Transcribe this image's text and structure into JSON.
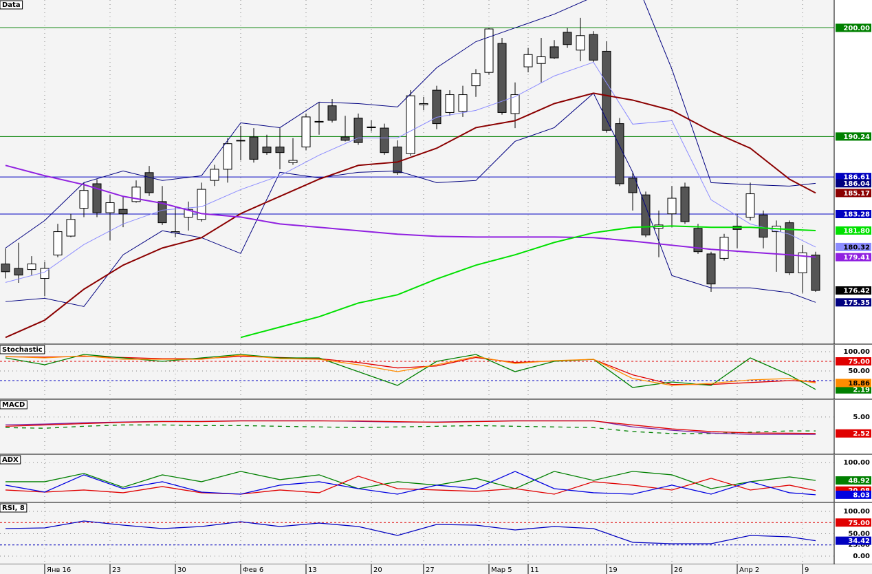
{
  "chart_data": [
    {
      "type": "candlestick",
      "title": "Data",
      "ylim": [
        171.6,
        202.5
      ],
      "open": [
        178.8,
        178.4,
        178.3,
        177.5,
        179.6,
        181.3,
        183.8,
        186.0,
        183.4,
        183.7,
        184.4,
        187.0,
        184.4,
        181.6,
        183.0,
        182.8,
        186.3,
        187.3,
        189.9,
        190.2,
        189.3,
        189.3,
        187.9,
        189.3,
        191.6,
        193.0,
        190.2,
        191.9,
        191.1,
        191.0,
        189.3,
        188.7,
        193.1,
        194.4,
        192.4,
        192.5,
        194.8,
        196.0,
        198.6,
        192.3,
        196.5,
        196.8,
        198.3,
        199.6,
        198.0,
        199.4,
        197.9,
        191.4,
        186.5,
        185.0,
        182.0,
        183.3,
        185.7,
        182.0,
        179.7,
        179.3,
        182.2,
        183.0,
        183.2,
        181.7,
        182.5,
        178.0,
        179.6
      ],
      "high": [
        180.2,
        180.7,
        179.5,
        179.0,
        182.4,
        183.3,
        186.1,
        186.4,
        185.0,
        184.9,
        186.3,
        187.6,
        185.8,
        183.9,
        184.4,
        186.1,
        187.7,
        190.1,
        191.2,
        191.0,
        190.4,
        191.0,
        190.1,
        192.3,
        193.3,
        193.6,
        192.1,
        192.3,
        191.7,
        191.4,
        189.9,
        194.4,
        193.8,
        194.8,
        194.4,
        194.8,
        196.3,
        200.0,
        199.1,
        195.1,
        198.2,
        199.1,
        198.9,
        200.0,
        200.9,
        199.7,
        198.8,
        191.9,
        187.0,
        185.3,
        183.6,
        185.8,
        186.1,
        182.4,
        179.9,
        181.5,
        183.3,
        186.1,
        183.6,
        182.7,
        182.7,
        180.5,
        179.9
      ],
      "low": [
        177.5,
        177.1,
        177.8,
        175.9,
        179.4,
        181.2,
        183.0,
        183.0,
        180.9,
        182.1,
        184.3,
        184.9,
        182.3,
        181.2,
        181.8,
        182.6,
        185.8,
        186.1,
        188.1,
        187.9,
        188.6,
        187.3,
        187.7,
        189.0,
        190.4,
        191.5,
        189.8,
        189.5,
        190.7,
        188.6,
        186.8,
        188.5,
        192.6,
        190.9,
        192.1,
        192.0,
        193.8,
        195.8,
        192.2,
        191.0,
        196.0,
        195.1,
        197.2,
        198.2,
        197.0,
        196.9,
        190.6,
        185.8,
        183.6,
        181.2,
        179.4,
        182.1,
        182.4,
        179.7,
        176.3,
        179.1,
        180.2,
        182.7,
        180.2,
        178.1,
        177.8,
        176.2,
        176.3
      ],
      "close": [
        178.1,
        177.8,
        178.8,
        178.4,
        181.7,
        182.8,
        185.4,
        183.4,
        184.3,
        183.3,
        185.7,
        185.2,
        182.5,
        181.7,
        183.7,
        185.5,
        187.3,
        189.6,
        189.9,
        188.2,
        188.8,
        188.8,
        188.1,
        192.0,
        191.6,
        191.7,
        189.9,
        189.7,
        191.1,
        188.8,
        187.0,
        193.9,
        193.2,
        191.4,
        194.0,
        194.0,
        195.9,
        199.9,
        192.4,
        194.0,
        197.6,
        197.4,
        197.3,
        198.5,
        199.3,
        197.1,
        190.8,
        186.0,
        185.2,
        181.4,
        182.3,
        184.7,
        182.6,
        179.9,
        177.0,
        181.2,
        181.9,
        185.1,
        181.2,
        182.2,
        178.0,
        179.8,
        176.42
      ],
      "close_label": "176.42",
      "overlay_x": [
        0,
        3,
        6,
        9,
        12,
        15,
        18,
        21,
        24,
        27,
        30,
        33,
        36,
        39,
        42,
        45,
        48,
        51,
        54,
        57,
        60,
        62
      ],
      "overlays": [
        {
          "color": "#000080",
          "values": [
            180.23,
            182.7,
            186.1,
            187.15,
            186.29,
            186.72,
            191.47,
            191.04,
            193.33,
            193.2,
            192.9,
            196.42,
            198.76,
            200.0,
            201.23,
            202.78,
            204.94,
            196.29,
            186.1,
            185.92,
            185.79,
            186.04
          ],
          "last_label": "186.04"
        },
        {
          "color": "#000080",
          "values": [
            175.42,
            175.72,
            174.98,
            179.62,
            181.78,
            181.16,
            179.74,
            187.03,
            186.53,
            187.03,
            187.15,
            186.1,
            186.29,
            189.81,
            191.04,
            194.13,
            187.03,
            177.76,
            176.65,
            176.65,
            176.22,
            175.35
          ],
          "last_label": "175.35"
        },
        {
          "color": "#8c8cff",
          "values": [
            177.14,
            178.07,
            180.54,
            182.39,
            183.63,
            183.94,
            185.48,
            186.72,
            188.57,
            190.12,
            190.12,
            191.97,
            192.59,
            193.82,
            195.68,
            196.91,
            191.35,
            191.66,
            184.56,
            182.39,
            181.47,
            180.32
          ],
          "last_label": "180.32"
        },
        {
          "color": "#8b0000",
          "values": [
            172.2,
            173.75,
            176.53,
            178.69,
            180.23,
            181.16,
            183.32,
            184.87,
            186.41,
            187.65,
            187.95,
            189.19,
            191.04,
            191.66,
            193.2,
            194.13,
            193.51,
            192.59,
            190.73,
            189.19,
            186.41,
            185.17
          ],
          "last_label": "185.17"
        },
        {
          "color": "#9020e0",
          "values": [
            187.65,
            186.72,
            185.92,
            184.87,
            184.25,
            183.32,
            183.01,
            182.39,
            182.09,
            181.78,
            181.47,
            181.28,
            181.22,
            181.22,
            181.22,
            181.16,
            180.85,
            180.48,
            180.11,
            179.86,
            179.62,
            179.41
          ],
          "last_label": "179.41"
        },
        {
          "color": "#00e000",
          "values": [
            null,
            null,
            null,
            null,
            null,
            null,
            172.2,
            173.13,
            174.06,
            175.29,
            176.03,
            177.45,
            178.69,
            179.62,
            180.73,
            181.6,
            182.09,
            182.21,
            182.09,
            182.09,
            181.9,
            181.8
          ],
          "last_label": "181.80"
        }
      ],
      "hlines": [
        {
          "value": 200,
          "label": "200.00",
          "color": "#008000"
        },
        {
          "value": 190.24,
          "label": "190.24",
          "color": "#008000"
        },
        {
          "value": 186.61,
          "label": "186.61",
          "color": "#0000c0"
        },
        {
          "value": 183.28,
          "label": "183.28",
          "color": "#0000c0"
        }
      ],
      "x_labels": [
        {
          "index": 3,
          "label": "Янв 16"
        },
        {
          "index": 8,
          "label": "23"
        },
        {
          "index": 13,
          "label": "30"
        },
        {
          "index": 18,
          "label": "Фев 6"
        },
        {
          "index": 23,
          "label": "13"
        },
        {
          "index": 28,
          "label": "20"
        },
        {
          "index": 32,
          "label": "27"
        },
        {
          "index": 37,
          "label": "Мар 5"
        },
        {
          "index": 40,
          "label": "11"
        },
        {
          "index": 46,
          "label": "19"
        },
        {
          "index": 51,
          "label": "26"
        },
        {
          "index": 56,
          "label": "Апр 2"
        },
        {
          "index": 61,
          "label": "9"
        }
      ]
    },
    {
      "type": "line",
      "title": "Stochastic",
      "ylim": [
        -23.2,
        117.9
      ],
      "yticks": [
        {
          "value": 100,
          "label": "100.00"
        },
        {
          "value": 50,
          "label": "50.00"
        }
      ],
      "levels": [
        {
          "value": 75,
          "label": "75.00",
          "color": "#e00000"
        },
        {
          "value": 25,
          "color": "#0000c0"
        }
      ],
      "x": [
        0,
        3,
        6,
        9,
        12,
        15,
        18,
        21,
        24,
        27,
        30,
        33,
        36,
        39,
        42,
        45,
        48,
        51,
        54,
        57,
        60,
        62
      ],
      "series": [
        {
          "color": "#e00000",
          "values": [
            87,
            86,
            88,
            85,
            82,
            82,
            88,
            85,
            82,
            72,
            58,
            63,
            85,
            72,
            76,
            80,
            40,
            15,
            15,
            20,
            25,
            22
          ]
        },
        {
          "color": "#008000",
          "values": [
            83.9,
            66.1,
            92.9,
            83.9,
            75,
            83.9,
            92.9,
            83.9,
            83.9,
            48.2,
            12.5,
            75,
            92.9,
            48.2,
            75,
            80.4,
            7.1,
            21.4,
            12.5,
            83.9,
            39.3,
            2.19
          ],
          "last_label": "2.19"
        },
        {
          "color": "#ff8c00",
          "values": [
            87.5,
            83.9,
            89.3,
            80.4,
            80.4,
            80.4,
            91.1,
            82.1,
            80.4,
            66.1,
            48.2,
            66.1,
            87.5,
            69.6,
            76.8,
            80.4,
            30.4,
            12.5,
            17.9,
            26.8,
            30.4,
            18.86
          ],
          "last_label": "18.86"
        }
      ]
    },
    {
      "type": "line",
      "title": "MACD",
      "ylim": [
        -0.62,
        7.58
      ],
      "yticks": [
        {
          "value": 5,
          "label": "5.00"
        }
      ],
      "x": [
        0,
        3,
        6,
        9,
        12,
        15,
        18,
        21,
        24,
        27,
        30,
        33,
        36,
        39,
        42,
        45,
        48,
        51,
        54,
        57,
        60,
        62
      ],
      "series": [
        {
          "color": "#008000",
          "dashed": true,
          "values": [
            3.4,
            3.3,
            3.6,
            3.8,
            3.8,
            3.7,
            3.7,
            3.6,
            3.5,
            3.4,
            3.5,
            3.6,
            3.7,
            3.6,
            3.5,
            3.4,
            2.8,
            2.5,
            2.5,
            2.7,
            2.9,
            2.9
          ]
        },
        {
          "color": "#7b1fa2",
          "values": [
            3.82,
            3.93,
            4.13,
            4.24,
            4.34,
            4.34,
            4.44,
            4.44,
            4.44,
            4.34,
            4.24,
            4.24,
            4.34,
            4.44,
            4.44,
            4.44,
            3.51,
            3.0,
            2.58,
            2.38,
            2.38,
            2.38
          ]
        },
        {
          "color": "#e00000",
          "values": [
            3.6,
            3.8,
            4.0,
            4.2,
            4.3,
            4.3,
            4.4,
            4.4,
            4.4,
            4.4,
            4.3,
            4.2,
            4.3,
            4.4,
            4.4,
            4.4,
            3.8,
            3.2,
            2.8,
            2.6,
            2.55,
            2.52
          ],
          "last_label": "2.52"
        }
      ]
    },
    {
      "type": "line",
      "title": "ADX",
      "ylim": [
        -13.8,
        121.6
      ],
      "yticks": [
        {
          "value": 100,
          "label": "100.00"
        }
      ],
      "x": [
        0,
        3,
        6,
        9,
        12,
        15,
        18,
        21,
        24,
        27,
        30,
        33,
        36,
        39,
        42,
        45,
        48,
        51,
        54,
        57,
        60,
        62
      ],
      "series": [
        {
          "color": "#008000",
          "values": [
            45.2,
            45.2,
            68.8,
            29.5,
            64.8,
            45.2,
            74.7,
            51.1,
            64.8,
            25.5,
            45.2,
            35.4,
            55.0,
            25.5,
            74.7,
            49.1,
            74.7,
            64.8,
            25.5,
            45.2,
            58.9,
            48.92
          ],
          "last_label": "48.92"
        },
        {
          "color": "#e00000",
          "values": [
            21.6,
            15.7,
            21.6,
            13.8,
            31.4,
            13.8,
            9.8,
            21.6,
            13.8,
            60.9,
            25.5,
            21.6,
            17.7,
            25.5,
            9.8,
            45.2,
            35.4,
            21.6,
            55.0,
            21.6,
            35.4,
            20.08
          ],
          "last_label": "20.08"
        },
        {
          "color": "#0000e0",
          "values": [
            35.4,
            15.7,
            64.8,
            25.5,
            45.2,
            15.7,
            9.8,
            35.4,
            45.2,
            25.5,
            9.8,
            35.4,
            25.5,
            74.7,
            25.5,
            13.8,
            9.8,
            35.4,
            9.8,
            45.2,
            13.8,
            8.03
          ],
          "last_label": "8.03"
        }
      ]
    },
    {
      "type": "line",
      "title": "RSI, 8",
      "ylim": [
        -18.5,
        118.5
      ],
      "yticks": [
        {
          "value": 100,
          "label": "100.00"
        },
        {
          "value": 50,
          "label": "50.00"
        },
        {
          "value": 25,
          "label": "25.00"
        },
        {
          "value": 0,
          "label": "0.00"
        }
      ],
      "levels": [
        {
          "value": 75,
          "label": "75.00",
          "color": "#e00000"
        },
        {
          "value": 25,
          "color": "#0000c0"
        }
      ],
      "x": [
        0,
        3,
        6,
        9,
        12,
        15,
        18,
        21,
        24,
        27,
        30,
        33,
        36,
        39,
        42,
        45,
        48,
        51,
        54,
        57,
        60,
        62
      ],
      "series": [
        {
          "color": "#0000c0",
          "values": [
            61.5,
            63.1,
            78.5,
            69.2,
            61.5,
            66.2,
            76.9,
            66.2,
            73.8,
            66.2,
            46.2,
            70.8,
            69.2,
            58.5,
            66.2,
            61.5,
            30.8,
            27.7,
            27.7,
            46.2,
            43.1,
            34.42
          ],
          "last_label": "34.42"
        }
      ]
    }
  ]
}
